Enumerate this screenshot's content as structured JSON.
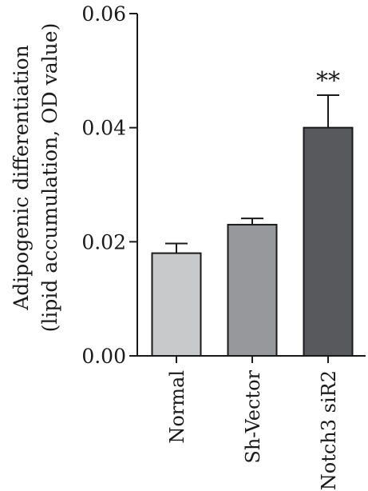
{
  "chart_data": {
    "type": "bar",
    "categories": [
      "Normal",
      "Sh-Vector",
      "Notch3 siR2"
    ],
    "values": [
      0.018,
      0.023,
      0.04
    ],
    "errors": [
      0.0017,
      0.0011,
      0.0057
    ],
    "annotations": [
      "",
      "",
      "**"
    ],
    "bar_colors": [
      "#c8c9cb",
      "#97989b",
      "#58595c"
    ],
    "ylabel_line1": "Adipogenic differentiation",
    "ylabel_line2": "(lipid accumulation, OD value)",
    "xlabel": "",
    "ylim": [
      0,
      0.06
    ],
    "yticks": [
      0.0,
      0.02,
      0.04,
      0.06
    ],
    "ytick_labels": [
      "0.00",
      "0.02",
      "0.04",
      "0.06"
    ],
    "grid": false,
    "legend": "none"
  }
}
